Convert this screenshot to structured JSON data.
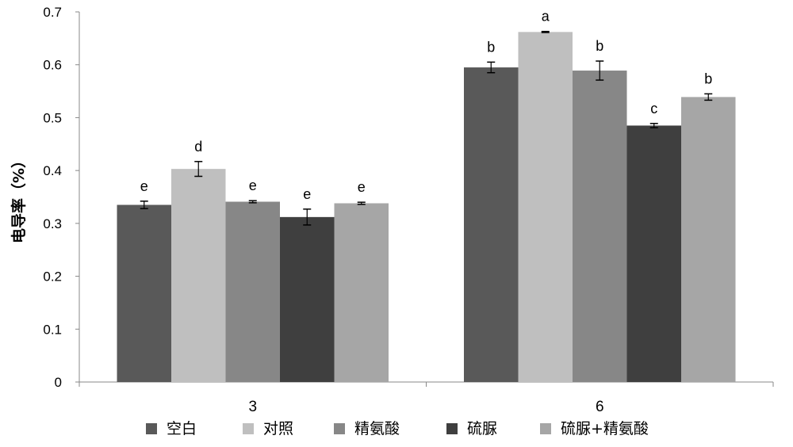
{
  "chart_data": {
    "type": "bar",
    "title": "",
    "xlabel": "",
    "ylabel": "电导率（%）",
    "ylim": [
      0,
      0.7
    ],
    "yticks": [
      0,
      0.1,
      0.2,
      0.3,
      0.4,
      0.5,
      0.6,
      0.7
    ],
    "ytick_labels": [
      "0",
      "0.1",
      "0.2",
      "0.3",
      "0.4",
      "0.5",
      "0.6",
      "0.7"
    ],
    "categories": [
      "3",
      "6"
    ],
    "legend_position": "bottom",
    "grid": false,
    "series": [
      {
        "name": "空白",
        "color": "#595959",
        "values": [
          0.335,
          0.595
        ],
        "errors": [
          0.007,
          0.01
        ],
        "labels": [
          "e",
          "b"
        ]
      },
      {
        "name": "对照",
        "color": "#bfbfbf",
        "values": [
          0.403,
          0.662
        ],
        "errors": [
          0.014,
          0.001
        ],
        "labels": [
          "d",
          "a"
        ]
      },
      {
        "name": "精氨酸",
        "color": "#878787",
        "values": [
          0.341,
          0.589
        ],
        "errors": [
          0.002,
          0.018
        ],
        "labels": [
          "e",
          "b"
        ]
      },
      {
        "name": "硫脲",
        "color": "#3f3f3f",
        "values": [
          0.312,
          0.485
        ],
        "errors": [
          0.015,
          0.004
        ],
        "labels": [
          "e",
          "c"
        ]
      },
      {
        "name": "硫脲+精氨酸",
        "color": "#a6a6a6",
        "values": [
          0.338,
          0.539
        ],
        "errors": [
          0.002,
          0.006
        ],
        "labels": [
          "e",
          "b"
        ]
      }
    ]
  }
}
